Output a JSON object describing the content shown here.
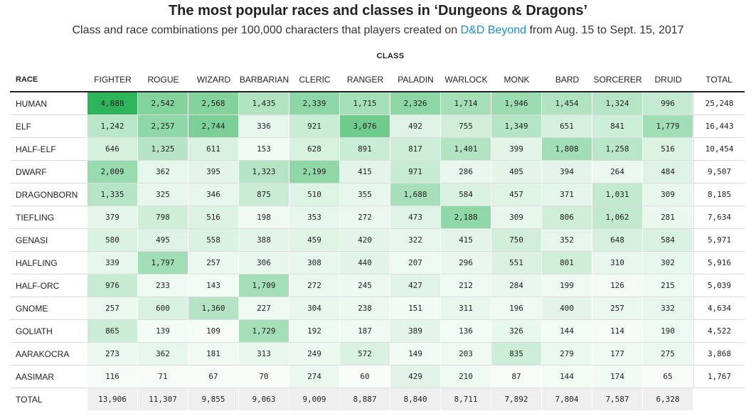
{
  "header": {
    "title": "The most popular races and classes in ‘Dungeons & Dragons’",
    "subtitle_pre": "Class and race combinations per 100,000 characters that players created on ",
    "subtitle_link": "D&D Beyond",
    "subtitle_post": " from Aug. 15 to Sept. 15, 2017"
  },
  "chart_data": {
    "type": "heatmap",
    "title": "The most popular races and classes in ‘Dungeons & Dragons’",
    "column_group_label": "CLASS",
    "row_header": "RACE",
    "total_label": "TOTAL",
    "columns": [
      "FIGHTER",
      "ROGUE",
      "WIZARD",
      "BARBARIAN",
      "CLERIC",
      "RANGER",
      "PALADIN",
      "WARLOCK",
      "MONK",
      "BARD",
      "SORCERER",
      "DRUID"
    ],
    "rows": [
      {
        "race": "HUMAN",
        "values": [
          4888,
          2542,
          2568,
          1435,
          2339,
          1715,
          2326,
          1714,
          1946,
          1454,
          1324,
          996
        ],
        "total": 25248
      },
      {
        "race": "ELF",
        "values": [
          1242,
          2257,
          2744,
          336,
          921,
          3076,
          492,
          755,
          1349,
          651,
          841,
          1779
        ],
        "total": 16443
      },
      {
        "race": "HALF-ELF",
        "values": [
          646,
          1325,
          611,
          153,
          628,
          891,
          817,
          1401,
          399,
          1808,
          1258,
          516
        ],
        "total": 10454
      },
      {
        "race": "DWARF",
        "values": [
          2009,
          362,
          395,
          1323,
          2199,
          415,
          971,
          286,
          405,
          394,
          264,
          484
        ],
        "total": 9507
      },
      {
        "race": "DRAGONBORN",
        "values": [
          1335,
          325,
          346,
          875,
          510,
          355,
          1688,
          584,
          457,
          371,
          1031,
          309
        ],
        "total": 8185
      },
      {
        "race": "TIEFLING",
        "values": [
          379,
          798,
          516,
          198,
          353,
          272,
          473,
          2188,
          309,
          806,
          1062,
          281
        ],
        "total": 7634
      },
      {
        "race": "GENASI",
        "values": [
          580,
          495,
          558,
          388,
          459,
          420,
          322,
          415,
          750,
          352,
          648,
          584
        ],
        "total": 5971
      },
      {
        "race": "HALFLING",
        "values": [
          339,
          1797,
          257,
          306,
          308,
          440,
          207,
          296,
          551,
          801,
          310,
          302
        ],
        "total": 5916
      },
      {
        "race": "HALF-ORC",
        "values": [
          976,
          233,
          143,
          1709,
          272,
          245,
          427,
          212,
          284,
          199,
          126,
          215
        ],
        "total": 5039
      },
      {
        "race": "GNOME",
        "values": [
          257,
          600,
          1360,
          227,
          304,
          238,
          151,
          311,
          196,
          400,
          257,
          332
        ],
        "total": 4634
      },
      {
        "race": "GOLIATH",
        "values": [
          865,
          139,
          109,
          1729,
          192,
          187,
          389,
          136,
          326,
          144,
          114,
          190
        ],
        "total": 4522
      },
      {
        "race": "AARAKOCRA",
        "values": [
          273,
          362,
          181,
          313,
          249,
          572,
          149,
          203,
          835,
          279,
          177,
          275
        ],
        "total": 3868
      },
      {
        "race": "AASIMAR",
        "values": [
          116,
          71,
          67,
          70,
          274,
          60,
          429,
          210,
          87,
          144,
          174,
          65
        ],
        "total": 1767
      }
    ],
    "column_totals": [
      13906,
      11307,
      9855,
      9063,
      9009,
      8887,
      8840,
      8711,
      7892,
      7804,
      7587,
      6328
    ],
    "color_low": "#ffffff",
    "color_high": "#2eb55a",
    "value_max": 4888
  }
}
